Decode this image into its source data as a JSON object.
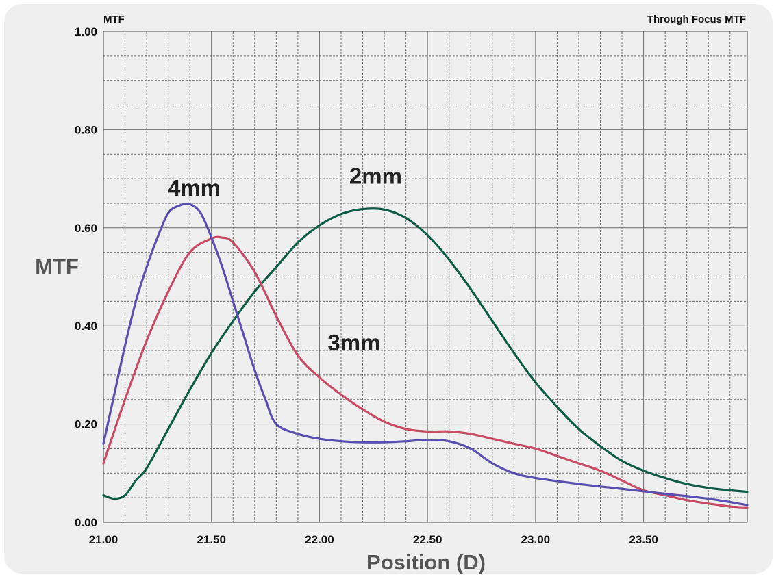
{
  "chart_data": {
    "type": "line",
    "title": "Through Focus MTF",
    "corner_label": "MTF",
    "xlabel": "Position (D)",
    "ylabel": "MTF",
    "xlim": [
      21.0,
      23.98
    ],
    "ylim": [
      0.0,
      1.0
    ],
    "grid": true,
    "x_ticks": [
      {
        "value": 21.0,
        "label": "21.00"
      },
      {
        "value": 21.5,
        "label": "21.50"
      },
      {
        "value": 22.0,
        "label": "22.00"
      },
      {
        "value": 22.5,
        "label": "22.50"
      },
      {
        "value": 23.0,
        "label": "23.00"
      },
      {
        "value": 23.5,
        "label": "23.50"
      }
    ],
    "y_ticks": [
      {
        "value": 0.0,
        "label": "0.00"
      },
      {
        "value": 0.2,
        "label": "0.20"
      },
      {
        "value": 0.4,
        "label": "0.40"
      },
      {
        "value": 0.6,
        "label": "0.60"
      },
      {
        "value": 0.8,
        "label": "0.80"
      },
      {
        "value": 1.0,
        "label": "1.00"
      }
    ],
    "series": [
      {
        "name": "2mm",
        "color": "#0d5c45",
        "x": [
          21.0,
          21.05,
          21.1,
          21.15,
          21.2,
          21.3,
          21.4,
          21.5,
          21.6,
          21.7,
          21.8,
          21.9,
          22.0,
          22.1,
          22.2,
          22.3,
          22.4,
          22.5,
          22.6,
          22.7,
          22.8,
          22.9,
          23.0,
          23.1,
          23.2,
          23.3,
          23.4,
          23.5,
          23.6,
          23.7,
          23.8,
          23.9,
          23.98
        ],
        "y": [
          0.055,
          0.048,
          0.055,
          0.085,
          0.11,
          0.19,
          0.27,
          0.345,
          0.41,
          0.47,
          0.52,
          0.57,
          0.605,
          0.628,
          0.638,
          0.637,
          0.62,
          0.585,
          0.535,
          0.475,
          0.41,
          0.345,
          0.285,
          0.235,
          0.19,
          0.155,
          0.125,
          0.105,
          0.09,
          0.078,
          0.07,
          0.065,
          0.062
        ]
      },
      {
        "name": "3mm",
        "color": "#c84a63",
        "x": [
          21.0,
          21.1,
          21.2,
          21.3,
          21.4,
          21.5,
          21.55,
          21.6,
          21.7,
          21.8,
          21.9,
          22.0,
          22.1,
          22.2,
          22.3,
          22.4,
          22.5,
          22.6,
          22.7,
          22.8,
          22.9,
          23.0,
          23.1,
          23.2,
          23.3,
          23.4,
          23.5,
          23.6,
          23.7,
          23.8,
          23.9,
          23.98
        ],
        "y": [
          0.12,
          0.25,
          0.37,
          0.47,
          0.55,
          0.578,
          0.58,
          0.57,
          0.51,
          0.42,
          0.34,
          0.295,
          0.26,
          0.23,
          0.205,
          0.19,
          0.185,
          0.185,
          0.18,
          0.17,
          0.16,
          0.15,
          0.135,
          0.12,
          0.105,
          0.085,
          0.065,
          0.055,
          0.045,
          0.038,
          0.032,
          0.03
        ]
      },
      {
        "name": "4mm",
        "color": "#5a4fb0",
        "x": [
          21.0,
          21.05,
          21.1,
          21.15,
          21.2,
          21.25,
          21.3,
          21.35,
          21.4,
          21.45,
          21.5,
          21.55,
          21.6,
          21.65,
          21.7,
          21.75,
          21.8,
          21.9,
          22.0,
          22.1,
          22.2,
          22.3,
          22.4,
          22.5,
          22.6,
          22.7,
          22.8,
          22.9,
          23.0,
          23.2,
          23.4,
          23.6,
          23.8,
          23.98
        ],
        "y": [
          0.16,
          0.26,
          0.36,
          0.45,
          0.52,
          0.58,
          0.63,
          0.645,
          0.648,
          0.63,
          0.58,
          0.52,
          0.45,
          0.38,
          0.31,
          0.25,
          0.2,
          0.18,
          0.17,
          0.165,
          0.163,
          0.163,
          0.165,
          0.168,
          0.165,
          0.15,
          0.12,
          0.1,
          0.09,
          0.078,
          0.068,
          0.058,
          0.048,
          0.035
        ]
      }
    ],
    "annotations": [
      {
        "text": "4mm",
        "x": 21.42,
        "y": 0.665
      },
      {
        "text": "2mm",
        "x": 22.26,
        "y": 0.69
      },
      {
        "text": "3mm",
        "x": 22.16,
        "y": 0.35
      }
    ]
  }
}
